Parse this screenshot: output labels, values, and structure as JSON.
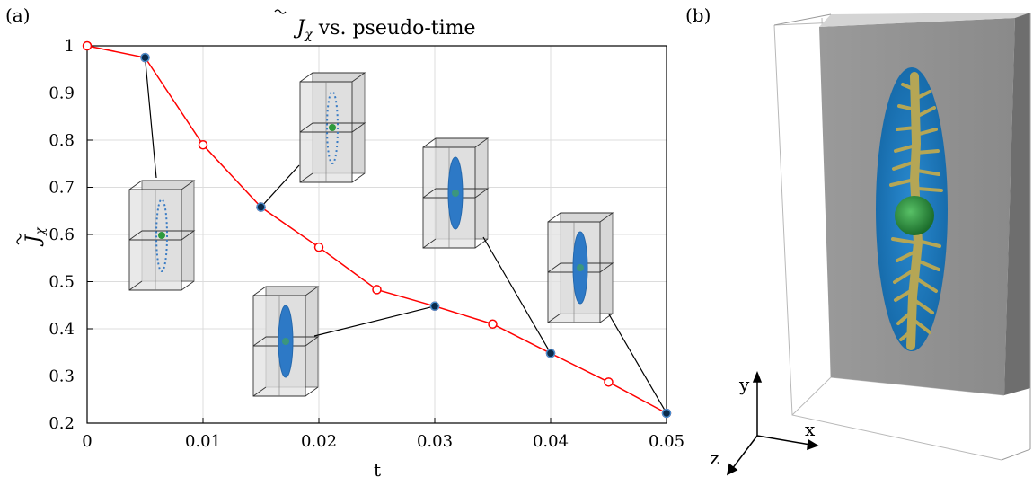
{
  "panels": {
    "a_label": "(a)",
    "b_label": "(b)"
  },
  "chart_data": {
    "type": "line",
    "title_prefix": "J",
    "title_sub": "χ",
    "title_rest": " vs. pseudo-time",
    "xlabel": "t",
    "ylabel_main": "J",
    "ylabel_sub": "χ",
    "xlim": [
      0,
      0.05
    ],
    "ylim": [
      0.2,
      1.0
    ],
    "grid": true,
    "x_ticks": [
      0,
      0.01,
      0.02,
      0.03,
      0.04,
      0.05
    ],
    "x_tick_labels": [
      "0",
      "0.01",
      "0.02",
      "0.03",
      "0.04",
      "0.05"
    ],
    "y_ticks": [
      0.2,
      0.3,
      0.4,
      0.5,
      0.6,
      0.7,
      0.8,
      0.9,
      1.0
    ],
    "y_tick_labels": [
      "0.2",
      "0.3",
      "0.4",
      "0.5",
      "0.6",
      "0.7",
      "0.8",
      "0.9",
      "1"
    ],
    "series": [
      {
        "x": [
          0,
          0.005,
          0.01,
          0.015,
          0.02,
          0.025,
          0.03,
          0.035,
          0.04,
          0.045,
          0.05
        ],
        "y": [
          1.0,
          0.975,
          0.79,
          0.658,
          0.573,
          0.483,
          0.448,
          0.41,
          0.348,
          0.287,
          0.221
        ],
        "color": "#ff0000",
        "marker": "open-circle"
      }
    ],
    "highlighted_points": [
      {
        "x": 0.005,
        "y": 0.975
      },
      {
        "x": 0.015,
        "y": 0.658
      },
      {
        "x": 0.03,
        "y": 0.448
      },
      {
        "x": 0.04,
        "y": 0.348
      },
      {
        "x": 0.05,
        "y": 0.221
      }
    ],
    "highlight_fill": "#0b2a4a",
    "highlight_ring": "#4a90d0",
    "inset_style": "3D box thumbnails linked to highlighted points"
  },
  "panel_b": {
    "axis_labels": {
      "x": "x",
      "y": "y",
      "z": "z"
    },
    "colors": {
      "slab": "#8c8c8c",
      "ellipse": "#1e7cc0",
      "tree": "#b8a85a",
      "sphere": "#2a8a3a"
    }
  }
}
